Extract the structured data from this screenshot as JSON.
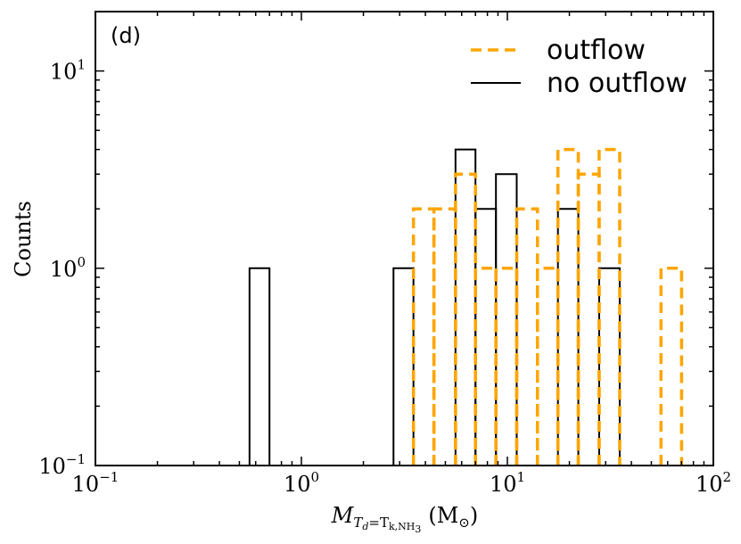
{
  "chart_data": {
    "type": "histogram",
    "panel_label": "(d)",
    "ylabel": "Counts",
    "xlabel": {
      "symbol": "M",
      "sub_main": "T",
      "sub_sub": "d",
      "sub_rest": "=T",
      "sub_rest2": "k,NH",
      "sub_rest3": "3",
      "unit_open": "(M",
      "unit_sun": "⊙",
      "unit_close": ")"
    },
    "x_scale": "log",
    "y_scale": "log",
    "xlim": [
      0.1,
      100
    ],
    "ylim": [
      0.1,
      20
    ],
    "x_ticks": [
      {
        "value": 0.1,
        "base": "10",
        "exp": "−1"
      },
      {
        "value": 1,
        "base": "10",
        "exp": "0"
      },
      {
        "value": 10,
        "base": "10",
        "exp": "1"
      },
      {
        "value": 100,
        "base": "10",
        "exp": "2"
      }
    ],
    "y_ticks": [
      {
        "value": 0.1,
        "base": "10",
        "exp": "−1"
      },
      {
        "value": 1,
        "base": "10",
        "exp": "0"
      },
      {
        "value": 10,
        "base": "10",
        "exp": "1"
      }
    ],
    "legend_position": "top-right",
    "series": [
      {
        "name": "outflow",
        "style": "dashed",
        "color": "#FFA500",
        "bins": [
          {
            "x0": 3.5,
            "x1": 4.4,
            "y": 2
          },
          {
            "x0": 4.4,
            "x1": 5.6,
            "y": 2
          },
          {
            "x0": 5.6,
            "x1": 7.0,
            "y": 3
          },
          {
            "x0": 7.0,
            "x1": 8.8,
            "y": 1
          },
          {
            "x0": 8.8,
            "x1": 11.1,
            "y": 1
          },
          {
            "x0": 11.1,
            "x1": 14.0,
            "y": 2
          },
          {
            "x0": 14.0,
            "x1": 17.6,
            "y": 1
          },
          {
            "x0": 17.6,
            "x1": 22.1,
            "y": 4
          },
          {
            "x0": 22.1,
            "x1": 27.9,
            "y": 3
          },
          {
            "x0": 27.9,
            "x1": 35.1,
            "y": 4
          },
          {
            "x0": 55.7,
            "x1": 70.1,
            "y": 1
          }
        ]
      },
      {
        "name": "no outflow",
        "style": "solid",
        "color": "#000000",
        "bins": [
          {
            "x0": 0.56,
            "x1": 0.7,
            "y": 1
          },
          {
            "x0": 2.8,
            "x1": 3.5,
            "y": 1
          },
          {
            "x0": 5.6,
            "x1": 7.0,
            "y": 4
          },
          {
            "x0": 7.0,
            "x1": 8.8,
            "y": 2
          },
          {
            "x0": 8.8,
            "x1": 11.1,
            "y": 3
          },
          {
            "x0": 17.6,
            "x1": 22.1,
            "y": 2
          },
          {
            "x0": 27.9,
            "x1": 35.1,
            "y": 1
          }
        ]
      }
    ]
  }
}
